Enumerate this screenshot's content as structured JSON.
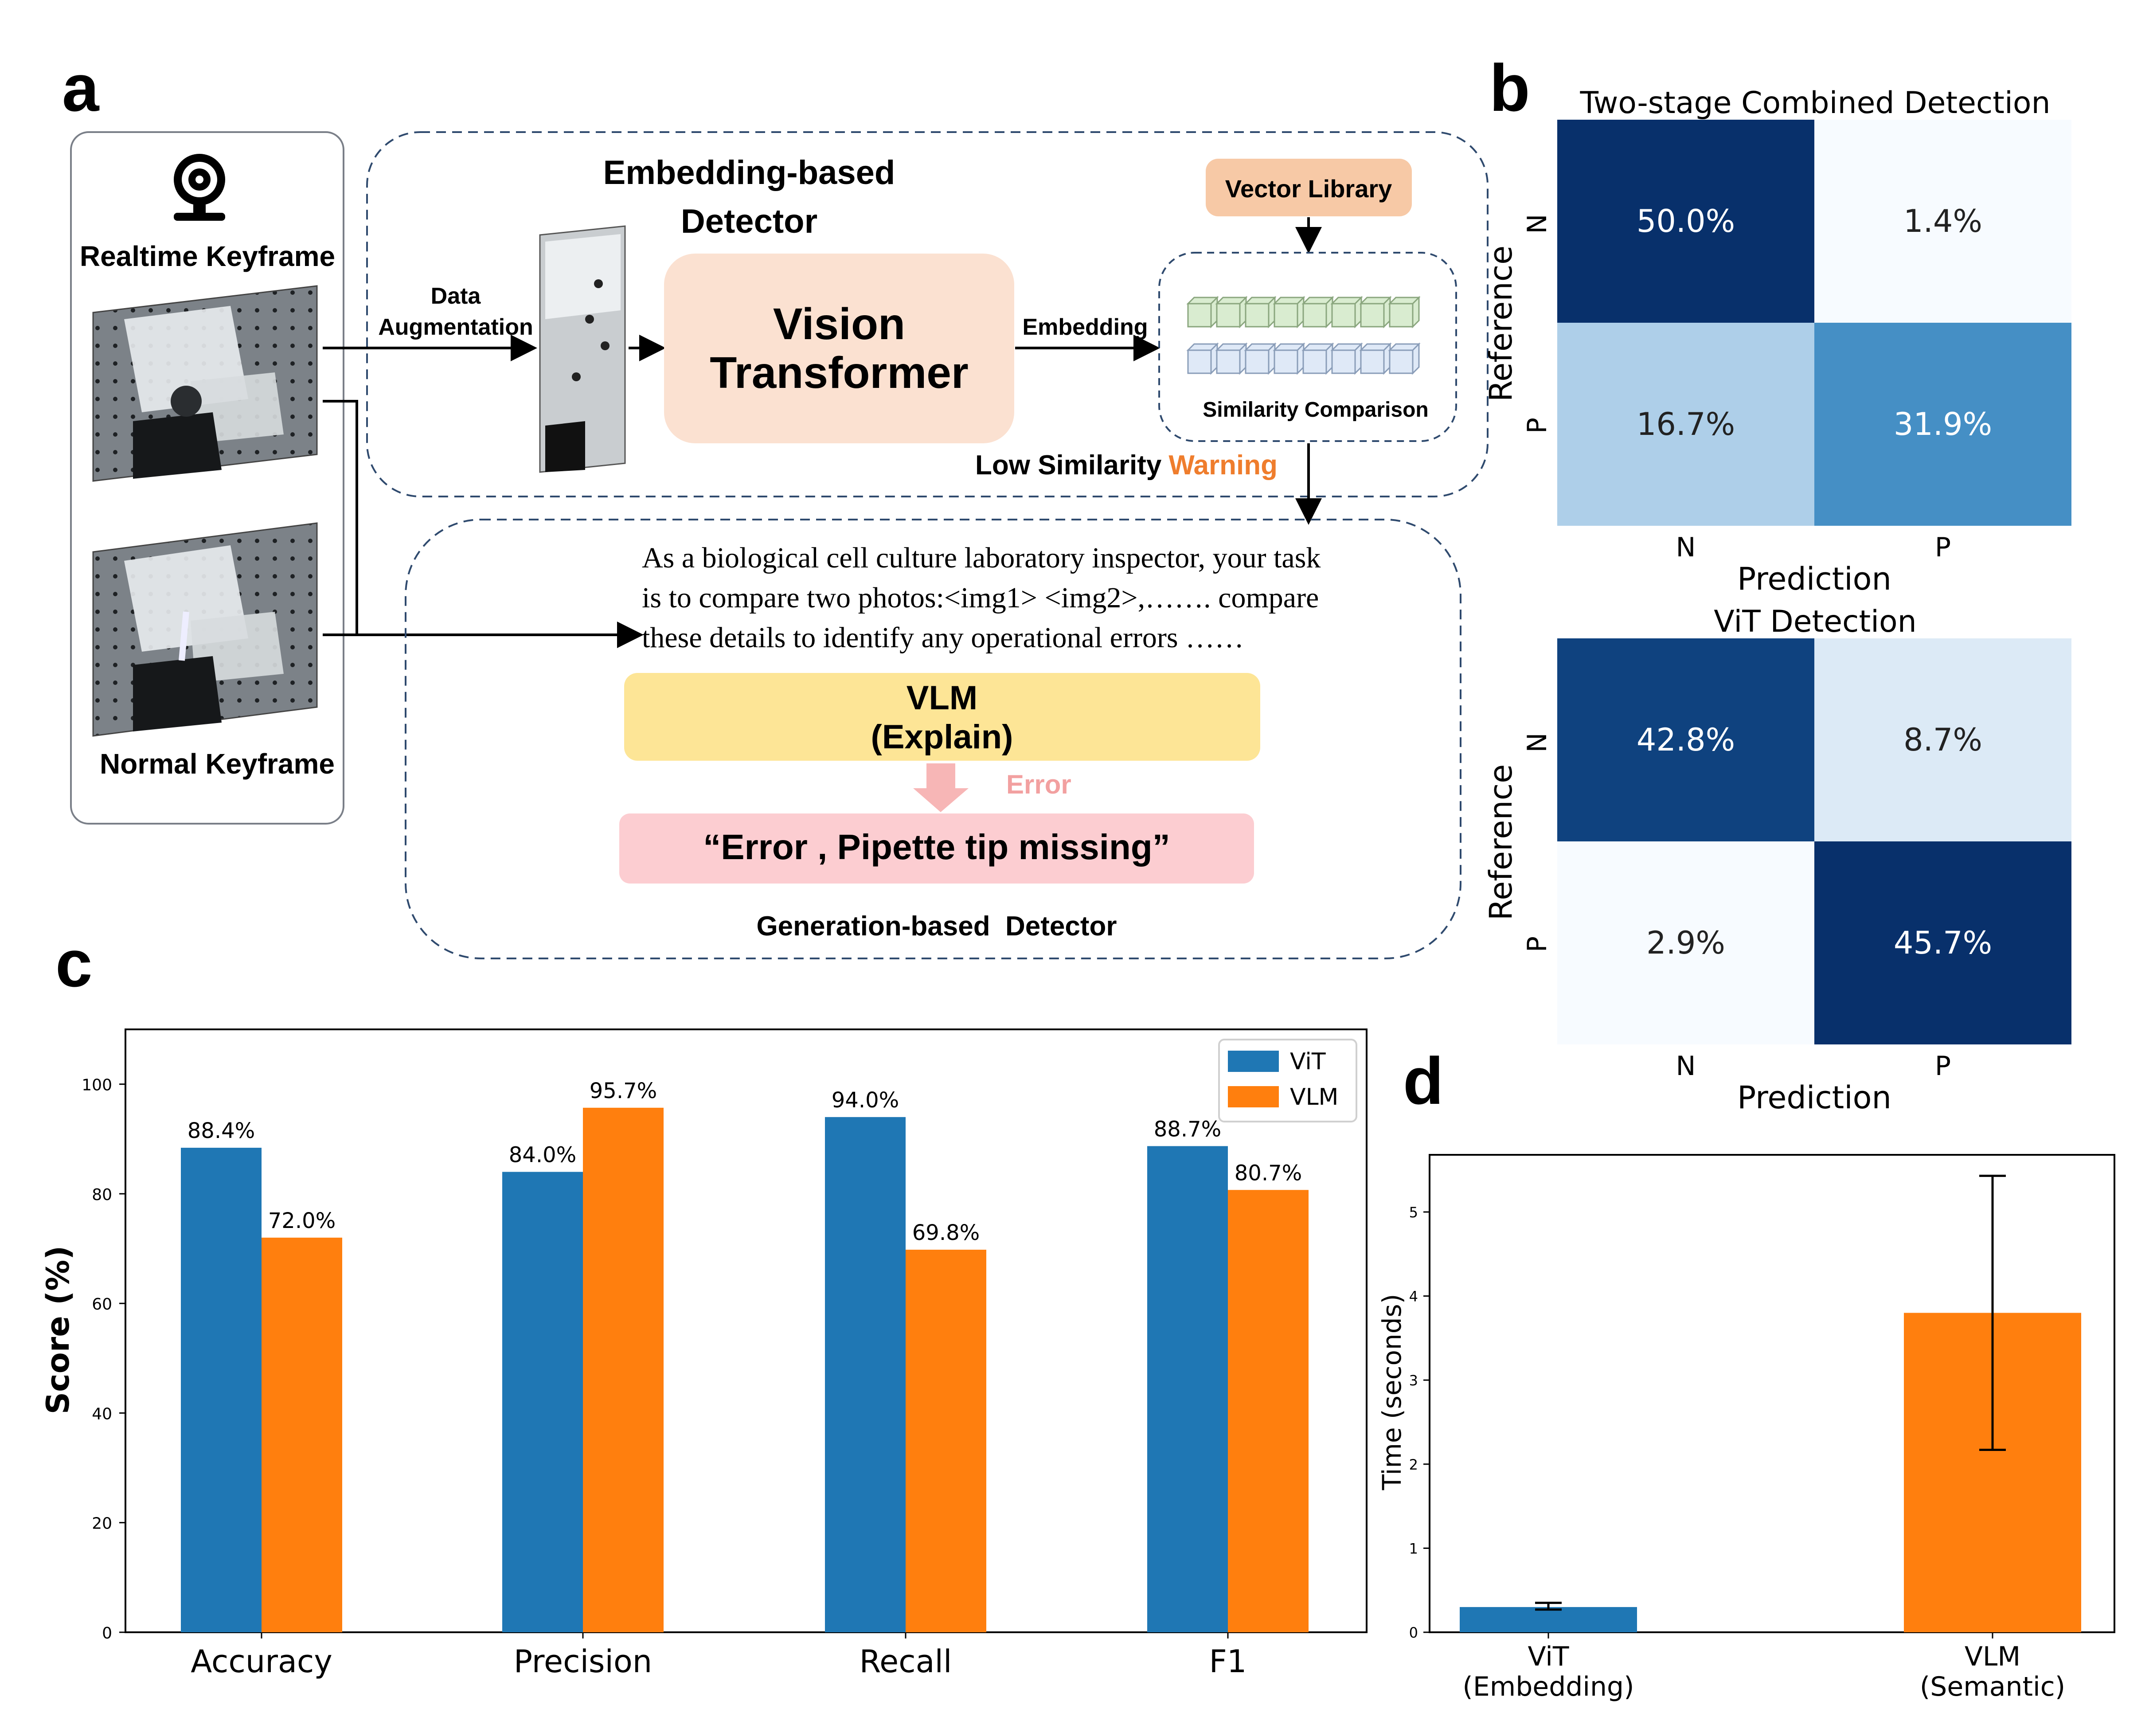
{
  "panel_labels": {
    "a": "a",
    "b": "b",
    "c": "c",
    "d": "d"
  },
  "colors": {
    "vit": "#1f77b4",
    "vlm": "#ff7f0e",
    "warning": "#ef7d2d",
    "error_text": "#f2a0a0",
    "vector_library_bg": "#f7c9a6",
    "vision_transformer_bg": "#fbe1d1",
    "vlm_box_bg": "#fde596",
    "error_box_bg": "#fccdd1",
    "dashed_border": "#2f4a6e"
  },
  "diagram": {
    "realtime_keyframe": "Realtime Keyframe",
    "normal_keyframe": "Normal Keyframe",
    "camera_icon": "webcam-icon",
    "embedding_detector_title_line1": "Embedding-based",
    "embedding_detector_title_line2": "Detector",
    "data_augmentation_line1": "Data",
    "data_augmentation_line2": "Augmentation",
    "vision_transformer_line1": "Vision",
    "vision_transformer_line2": "Transformer",
    "embedding_label": "Embedding",
    "vector_library": "Vector Library",
    "similarity_comparison": "Similarity Comparison",
    "low_similarity": "Low Similarity",
    "warning": "Warning",
    "prompt_line1": "As a biological cell culture laboratory inspector, your task",
    "prompt_line2": "is to compare two photos:<img1> <img2>,……. compare",
    "prompt_line3": "these details to identify any operational errors ……",
    "vlm_line1": "VLM",
    "vlm_line2": "(Explain)",
    "error_label": "Error",
    "error_output": "“Error , Pipette tip missing”",
    "generation_detector_title": "Generation-based  Detector"
  },
  "confusion_matrices": [
    {
      "title": "Two-stage Combined Detection",
      "xlabel": "Prediction",
      "ylabel": "Reference",
      "row_labels": [
        "N",
        "P"
      ],
      "col_labels": [
        "N",
        "P"
      ],
      "cells": [
        [
          "50.0%",
          "1.4%"
        ],
        [
          "16.7%",
          "31.9%"
        ]
      ],
      "values": [
        [
          50.0,
          1.4
        ],
        [
          16.7,
          31.9
        ]
      ]
    },
    {
      "title": "ViT Detection",
      "xlabel": "Prediction",
      "ylabel": "Reference",
      "row_labels": [
        "N",
        "P"
      ],
      "col_labels": [
        "N",
        "P"
      ],
      "cells": [
        [
          "42.8%",
          "8.7%"
        ],
        [
          "2.9%",
          "45.7%"
        ]
      ],
      "values": [
        [
          42.8,
          8.7
        ],
        [
          2.9,
          45.7
        ]
      ]
    }
  ],
  "chart_data": [
    {
      "type": "bar",
      "categories": [
        "Accuracy",
        "Precision",
        "Recall",
        "F1"
      ],
      "series": [
        {
          "name": "ViT",
          "values": [
            88.4,
            84.0,
            94.0,
            88.7
          ],
          "labels": [
            "88.4%",
            "84.0%",
            "94.0%",
            "88.7%"
          ],
          "color": "#1f77b4"
        },
        {
          "name": "VLM",
          "values": [
            72.0,
            95.7,
            69.8,
            80.7
          ],
          "labels": [
            "72.0%",
            "95.7%",
            "69.8%",
            "80.7%"
          ],
          "color": "#ff7f0e"
        }
      ],
      "ylabel": "Score (%)",
      "ylim": [
        0,
        110
      ],
      "yticks": [
        "0",
        "20",
        "40",
        "60",
        "80",
        "100"
      ],
      "legend": "top-right",
      "grid": false
    },
    {
      "type": "bar",
      "categories": [
        "ViT\n(Embedding)",
        "VLM\n(Semantic)"
      ],
      "category_lines": [
        [
          "ViT",
          "(Embedding)"
        ],
        [
          "VLM",
          "(Semantic)"
        ]
      ],
      "values": [
        0.3,
        3.8
      ],
      "errors": [
        [
          0.27,
          0.35
        ],
        [
          2.17,
          5.43
        ]
      ],
      "colors": [
        "#1f77b4",
        "#ff7f0e"
      ],
      "ylabel": "Time (seconds)",
      "ylim": [
        0,
        5.68
      ],
      "yticks": [
        "0",
        "1",
        "2",
        "3",
        "4",
        "5"
      ],
      "grid": false
    }
  ]
}
